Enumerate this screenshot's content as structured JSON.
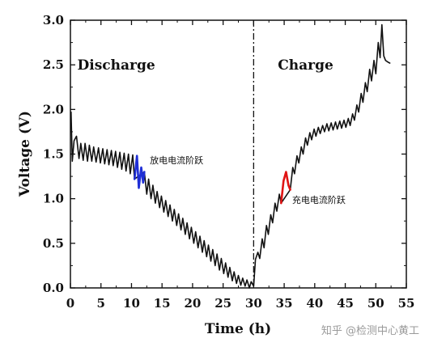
{
  "chart_data": {
    "type": "line",
    "title": "",
    "xlabel": "Time (h)",
    "ylabel": "Voltage (V)",
    "xlim": [
      0,
      55
    ],
    "ylim": [
      0,
      3.0
    ],
    "x_ticks": [
      0,
      5,
      10,
      15,
      20,
      25,
      30,
      35,
      40,
      45,
      50,
      55
    ],
    "y_ticks": [
      0.0,
      0.5,
      1.0,
      1.5,
      2.0,
      2.5,
      3.0
    ],
    "y_tick_labels": [
      "0.0",
      "0.5",
      "1.0",
      "1.5",
      "2.0",
      "2.5",
      "3.0"
    ],
    "grid": false,
    "divider_x": 30,
    "regions": [
      {
        "label": "Discharge",
        "x": 7.5,
        "y": 2.5
      },
      {
        "label": "Charge",
        "x": 38.5,
        "y": 2.5
      }
    ],
    "annotations": [
      {
        "text": "放电电流阶跃",
        "x": 13,
        "y": 1.43
      },
      {
        "text": "充电电流阶跃",
        "x": 36.3,
        "y": 0.99
      }
    ],
    "series": [
      {
        "color": "#111111",
        "x": [
          0.1,
          0.3,
          0.6,
          1.0,
          1.4,
          1.7,
          2.1,
          2.4,
          2.8,
          3.1,
          3.5,
          3.8,
          4.2,
          4.6,
          4.9,
          5.3,
          5.6,
          6.0,
          6.3,
          6.7,
          7.0,
          7.4,
          7.7,
          8.1,
          8.4,
          8.8,
          9.1,
          9.5,
          9.8,
          10.2,
          10.5,
          12.1,
          12.5,
          12.8,
          13.2,
          13.5,
          13.9,
          14.2,
          14.6,
          14.9,
          15.3,
          15.6,
          16.0,
          16.3,
          16.7,
          17.0,
          17.4,
          17.7,
          18.1,
          18.4,
          18.8,
          19.1,
          19.5,
          19.8,
          20.2,
          20.5,
          20.9,
          21.2,
          21.6,
          21.9,
          22.3,
          22.6,
          23.0,
          23.3,
          23.7,
          24.0,
          24.4,
          24.7,
          25.1,
          25.4,
          25.8,
          26.1,
          26.5,
          26.8,
          27.2,
          27.5,
          27.9,
          28.2,
          28.6,
          28.9,
          29.3,
          29.6,
          30.0,
          30.0,
          30.3,
          30.7,
          31.0,
          31.4,
          31.7,
          32.1,
          32.4,
          32.8,
          33.1,
          33.5,
          33.8,
          34.2,
          34.5,
          36.0,
          36.4,
          36.7,
          37.1,
          37.4,
          37.8,
          38.1,
          38.5,
          38.8,
          39.2,
          39.5,
          39.9,
          40.2,
          40.6,
          40.9,
          41.3,
          41.6,
          42.0,
          42.3,
          42.7,
          43.0,
          43.4,
          43.7,
          44.1,
          44.4,
          44.8,
          45.1,
          45.5,
          45.8,
          46.2,
          46.5,
          46.9,
          47.2,
          47.6,
          47.9,
          48.3,
          48.6,
          49.0,
          49.3,
          49.7,
          50.0,
          50.4,
          50.7,
          51.0,
          51.3,
          51.6,
          52.0,
          52.3
        ],
        "y": [
          1.97,
          1.42,
          1.65,
          1.7,
          1.45,
          1.62,
          1.43,
          1.62,
          1.42,
          1.6,
          1.42,
          1.58,
          1.41,
          1.57,
          1.4,
          1.56,
          1.39,
          1.55,
          1.38,
          1.54,
          1.37,
          1.53,
          1.35,
          1.52,
          1.33,
          1.51,
          1.31,
          1.5,
          1.28,
          1.49,
          1.22,
          1.3,
          1.05,
          1.22,
          1.0,
          1.15,
          0.95,
          1.08,
          0.9,
          1.03,
          0.85,
          0.98,
          0.8,
          0.93,
          0.75,
          0.88,
          0.7,
          0.83,
          0.65,
          0.78,
          0.6,
          0.73,
          0.55,
          0.68,
          0.5,
          0.63,
          0.45,
          0.58,
          0.4,
          0.53,
          0.35,
          0.48,
          0.3,
          0.43,
          0.25,
          0.38,
          0.2,
          0.33,
          0.16,
          0.28,
          0.12,
          0.23,
          0.08,
          0.18,
          0.05,
          0.14,
          0.03,
          0.11,
          0.02,
          0.09,
          0.0,
          0.07,
          0.02,
          0.02,
          0.32,
          0.4,
          0.33,
          0.55,
          0.45,
          0.7,
          0.6,
          0.82,
          0.73,
          0.95,
          0.86,
          1.05,
          0.95,
          1.1,
          1.35,
          1.28,
          1.48,
          1.4,
          1.58,
          1.5,
          1.68,
          1.6,
          1.74,
          1.66,
          1.78,
          1.7,
          1.8,
          1.73,
          1.82,
          1.75,
          1.84,
          1.76,
          1.85,
          1.77,
          1.86,
          1.78,
          1.87,
          1.79,
          1.88,
          1.8,
          1.9,
          1.82,
          1.95,
          1.88,
          2.05,
          1.97,
          2.18,
          2.08,
          2.3,
          2.2,
          2.45,
          2.32,
          2.55,
          2.4,
          2.75,
          2.58,
          2.95,
          2.6,
          2.55,
          2.53,
          2.52
        ]
      },
      {
        "color": "#1f2fd6",
        "x": [
          10.5,
          10.9,
          11.2,
          11.6,
          11.9,
          12.1
        ],
        "y": [
          1.22,
          1.48,
          1.12,
          1.35,
          1.18,
          1.3
        ]
      },
      {
        "color": "#e01414",
        "x": [
          34.5,
          34.9,
          35.3,
          35.7,
          36.0
        ],
        "y": [
          0.95,
          1.2,
          1.3,
          1.15,
          1.1
        ]
      }
    ]
  },
  "watermark": "知乎 @检测中心黄工"
}
